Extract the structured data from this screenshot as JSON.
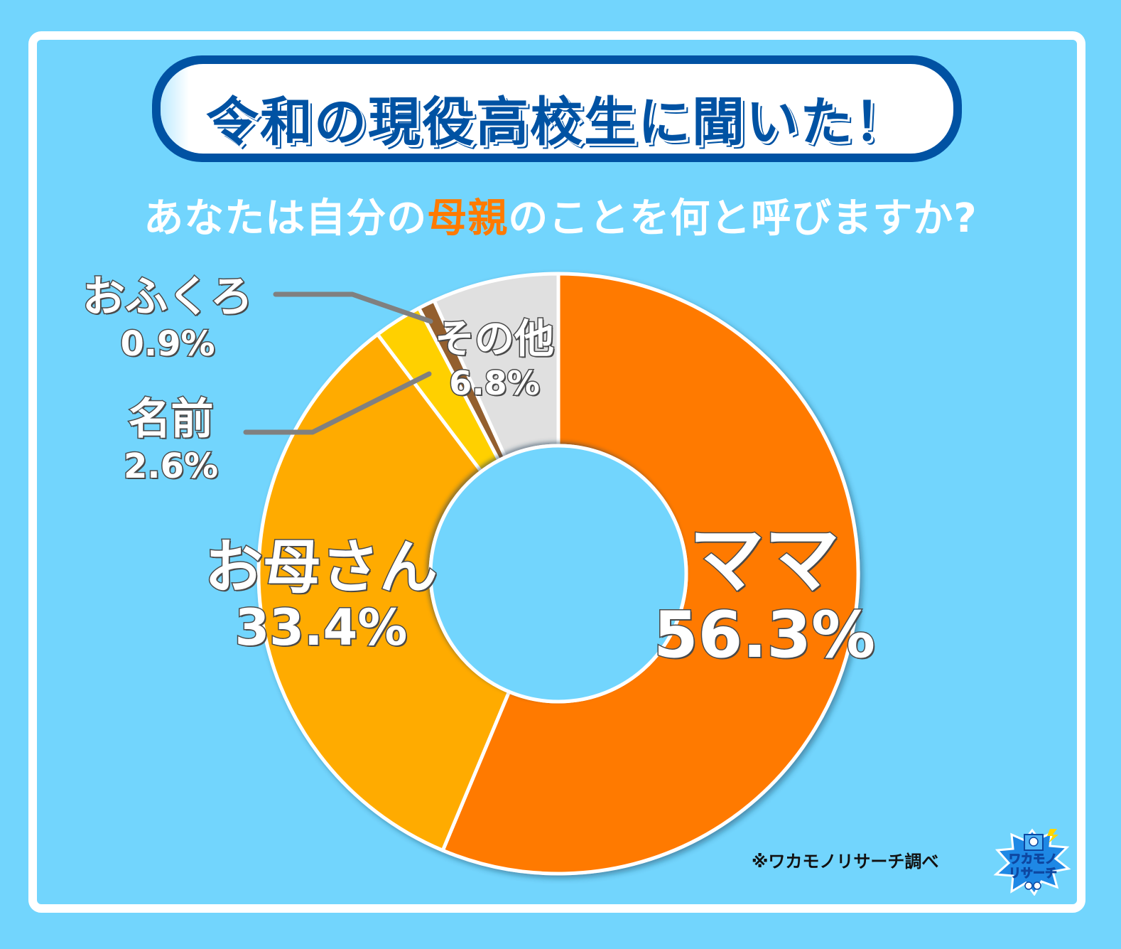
{
  "header": {
    "title": "令和の現役高校生に聞いた！",
    "question_pre": "あなたは自分の",
    "question_highlight": "母親",
    "question_post": "のことを何と呼びますか?"
  },
  "labels": {
    "mama": {
      "name": "ママ",
      "pct": "56.3%"
    },
    "okaasan": {
      "name": "お母さん",
      "pct": "33.4%"
    },
    "namae": {
      "name": "名前",
      "pct": "2.6%"
    },
    "ofukuro": {
      "name": "おふくろ",
      "pct": "0.9%"
    },
    "sonota": {
      "name": "その他",
      "pct": "6.8%"
    }
  },
  "footer": {
    "credit": "※ワカモノリサーチ調べ",
    "logo_line1": "ワカモノ",
    "logo_line2": "リサーチ"
  },
  "colors": {
    "background": "#72d5fd",
    "title_blue": "#0052a3",
    "highlight_orange": "#ff7a00",
    "mama": "#ff7a00",
    "okaasan": "#ffab00",
    "namae": "#ffd000",
    "ofukuro": "#935f2e",
    "sonota": "#e0e0e0"
  },
  "chart_data": {
    "type": "pie",
    "subtype": "donut",
    "title": "令和の現役高校生に聞いた！ あなたは自分の母親のことを何と呼びますか?",
    "categories": [
      "ママ",
      "お母さん",
      "名前",
      "おふくろ",
      "その他"
    ],
    "values": [
      56.3,
      33.4,
      2.6,
      0.9,
      6.8
    ],
    "unit": "%",
    "colors": [
      "#ff7a00",
      "#ffab00",
      "#ffd000",
      "#935f2e",
      "#e0e0e0"
    ],
    "start_angle": "12 o'clock",
    "direction": "clockwise",
    "source": "※ワカモノリサーチ調べ"
  }
}
